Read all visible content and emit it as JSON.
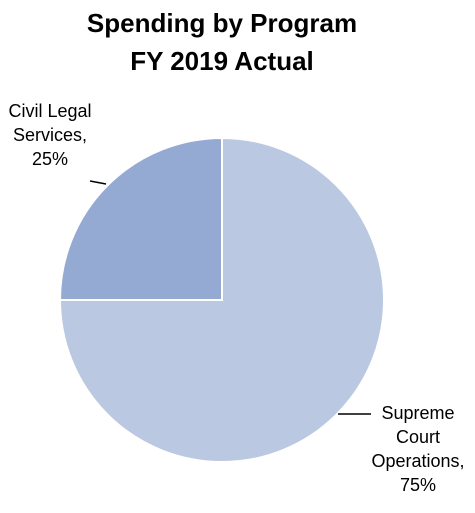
{
  "chart_data": {
    "type": "pie",
    "title_lines": [
      "Spending by Program",
      "FY 2019 Actual"
    ],
    "slices": [
      {
        "name": "Supreme Court Operations",
        "value": 75,
        "label_lines": [
          "Supreme",
          "Court",
          "Operations,",
          "75%"
        ],
        "color": "#BBC8E1"
      },
      {
        "name": "Civil Legal Services",
        "value": 25,
        "label_lines": [
          "Civil Legal",
          "Services,",
          "25%"
        ],
        "color": "#94AAD2"
      }
    ],
    "start_angle_deg": 0,
    "direction": "clockwise",
    "legend": "none"
  }
}
